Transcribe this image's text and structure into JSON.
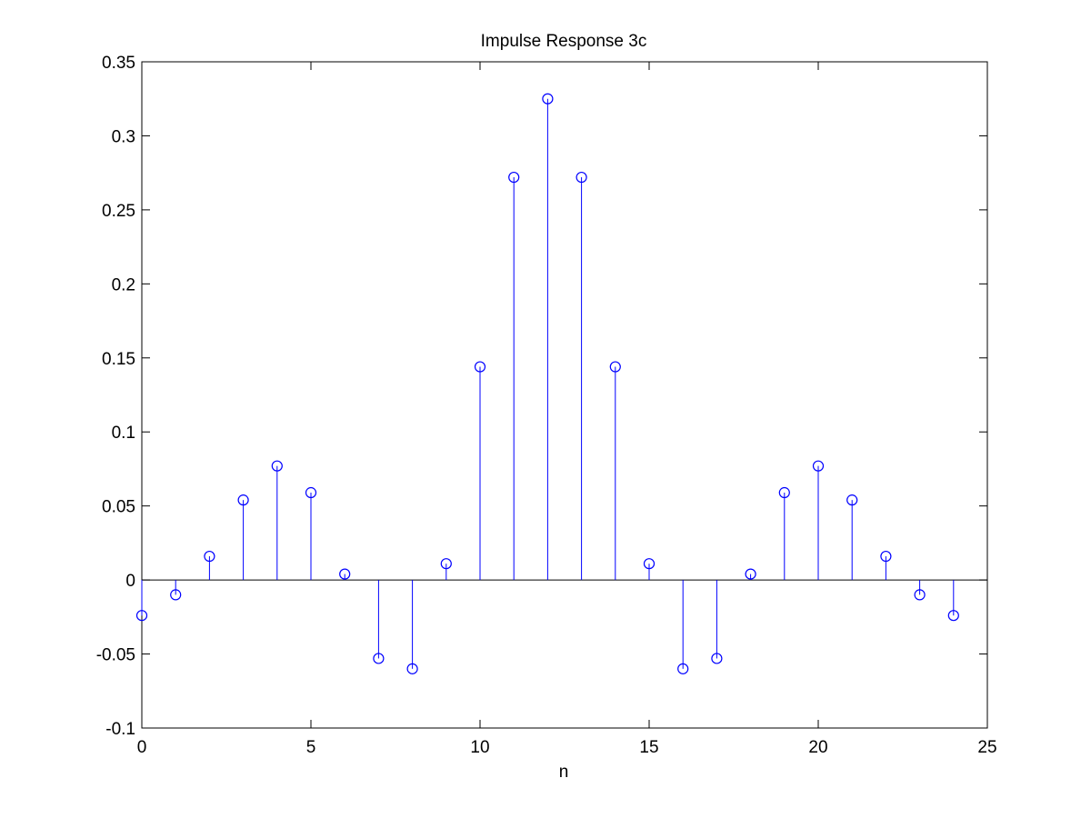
{
  "chart_data": {
    "type": "stem",
    "title": "Impulse Response 3c",
    "xlabel": "n",
    "ylabel": "",
    "xlim": [
      0,
      25
    ],
    "ylim": [
      -0.1,
      0.35
    ],
    "xticks": [
      0,
      5,
      10,
      15,
      20,
      25
    ],
    "xtick_labels": [
      "0",
      "5",
      "10",
      "15",
      "20",
      "25"
    ],
    "yticks": [
      -0.1,
      -0.05,
      0,
      0.05,
      0.1,
      0.15,
      0.2,
      0.25,
      0.3,
      0.35
    ],
    "ytick_labels": [
      "-0.1",
      "-0.05",
      "0",
      "0.05",
      "0.1",
      "0.15",
      "0.2",
      "0.25",
      "0.3",
      "0.35"
    ],
    "grid": false,
    "marker": "circle",
    "series_color": "#0000ff",
    "baseline": 0,
    "x": [
      0,
      1,
      2,
      3,
      4,
      5,
      6,
      7,
      8,
      9,
      10,
      11,
      12,
      13,
      14,
      15,
      16,
      17,
      18,
      19,
      20,
      21,
      22,
      23,
      24
    ],
    "values": [
      -0.024,
      -0.01,
      0.016,
      0.054,
      0.077,
      0.059,
      0.004,
      -0.053,
      -0.06,
      0.011,
      0.144,
      0.272,
      0.325,
      0.272,
      0.144,
      0.011,
      -0.06,
      -0.053,
      0.004,
      0.059,
      0.077,
      0.054,
      0.016,
      -0.01,
      -0.024
    ]
  }
}
